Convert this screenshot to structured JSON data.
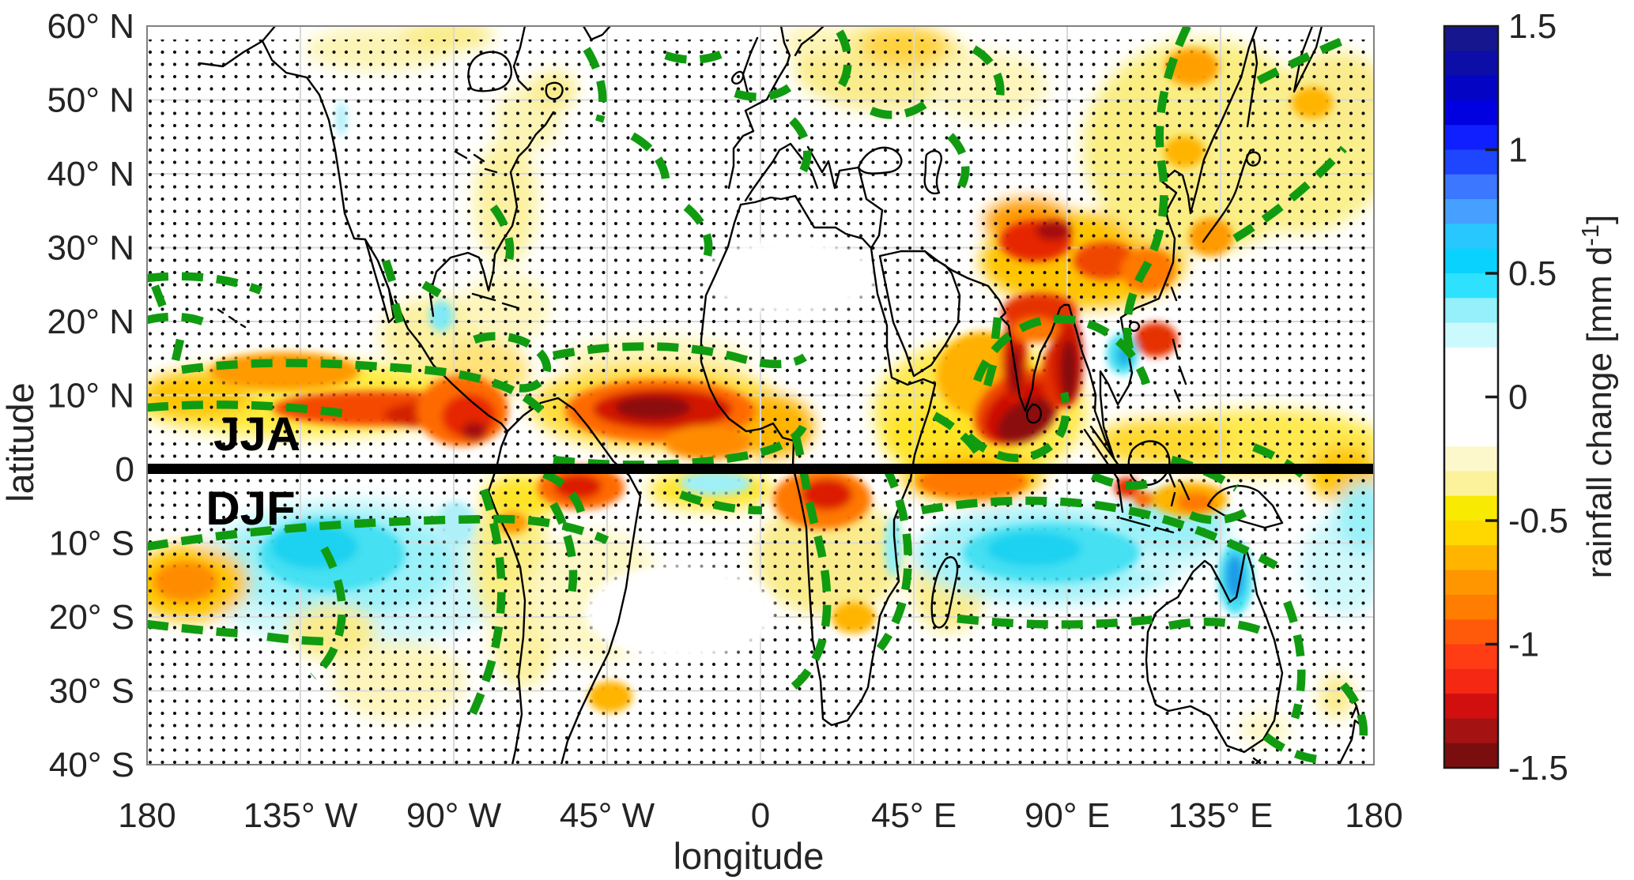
{
  "figure": {
    "kind": "seasonal rainfall-change world map (filled contours with stippling and dashed contour overlay)",
    "background_color": "#ffffff",
    "north_of_equator_season": "JJA",
    "south_of_equator_season": "DJF"
  },
  "axes": {
    "x": {
      "label": "longitude",
      "ticks": [
        "180",
        "135° W",
        "90° W",
        "45° W",
        "0",
        "45° E",
        "90° E",
        "135° E",
        "180"
      ]
    },
    "y": {
      "label": "latitude",
      "ticks": [
        "60° N",
        "50° N",
        "40° N",
        "30° N",
        "20° N",
        "10° N",
        "0",
        "10° S",
        "20° S",
        "30° S",
        "40° S"
      ]
    }
  },
  "annotations": {
    "north_label": "JJA",
    "south_label": "DJF"
  },
  "colorbar": {
    "label_prefix": "rainfall change [mm d",
    "label_sup": "-1",
    "label_suffix": "]",
    "ticks": [
      "1.5",
      "1",
      "0.5",
      "0",
      "-0.5",
      "-1",
      "-1.5"
    ],
    "tick_values": [
      1.5,
      1,
      0.5,
      0,
      -0.5,
      -1,
      -1.5
    ],
    "value_range": [
      -1.5,
      1.5
    ],
    "bands_top_to_bottom": [
      "#16168f",
      "#0d0da8",
      "#0404c4",
      "#0000e0",
      "#0f1fff",
      "#1e46ff",
      "#3c78ff",
      "#46a0ff",
      "#28c8ff",
      "#0ad2ff",
      "#2ee2ff",
      "#96f0fb",
      "#ccfafc",
      "#ffffff",
      "#ffffff",
      "#ffffff",
      "#ffffff",
      "#fdf8cc",
      "#fcf29b",
      "#f8ea00",
      "#ffd800",
      "#ffb400",
      "#ff9600",
      "#ff7d00",
      "#ff5a0a",
      "#ff3c14",
      "#f52814",
      "#d20f0f",
      "#a51212",
      "#7a0e0e"
    ]
  },
  "map_overlays": {
    "equator_divider_color": "#000000",
    "contour_dash_color": "#119b11",
    "gridline_color": "#d9d9d9",
    "coastline_color": "#000000",
    "stipple_color": "#111111"
  },
  "chart_data": {
    "type": "heatmap",
    "title": "",
    "xlabel": "longitude",
    "ylabel": "latitude",
    "x_range_deg": [
      -180,
      180
    ],
    "y_range_deg": [
      -40,
      60
    ],
    "x_tick_step_deg": 45,
    "y_tick_step_deg": 10,
    "value_label": "rainfall change [mm d-1]",
    "value_range": [
      -1.5,
      1.5
    ],
    "colorbar_band_step": 0.1,
    "layout": {
      "season_divider": "thick black line at equator, JJA shown north, DJF shown south",
      "stippling": "black dots over large parts of the map",
      "dashed_overlay": "thick green dashed contours outlining tropical rain belts"
    },
    "approx_regions": [
      {
        "season": "JJA",
        "region": "west-central Pacific ITCZ band 5-12N",
        "change_mm_d": -0.6
      },
      {
        "season": "JJA",
        "region": "east Pacific / Central America ITCZ",
        "change_mm_d": -1.2
      },
      {
        "season": "JJA",
        "region": "equatorial Atlantic off West Africa",
        "change_mm_d": -1.5
      },
      {
        "season": "JJA",
        "region": "Arabian Sea hook around southern India",
        "change_mm_d": -1.5
      },
      {
        "season": "JJA",
        "region": "Bangladesh-Myanmar coast and 20-30N China band",
        "change_mm_d": -1.0
      },
      {
        "season": "JJA",
        "region": "NW Pacific, Japan and mid-latitude oceans",
        "change_mm_d": -0.3
      },
      {
        "season": "JJA",
        "region": "Gulf of Thailand spot",
        "change_mm_d": 0.4
      },
      {
        "season": "DJF",
        "region": "central South Pacific 10-20S",
        "change_mm_d": 0.5
      },
      {
        "season": "DJF",
        "region": "southern tropical Indian Ocean 10-15S",
        "change_mm_d": 0.5
      },
      {
        "season": "DJF",
        "region": "Cape York / NE Australia",
        "change_mm_d": 0.7
      },
      {
        "season": "DJF",
        "region": "NE Brazil near equator",
        "change_mm_d": -1.0
      },
      {
        "season": "DJF",
        "region": "Angola / southern Africa",
        "change_mm_d": -1.0
      },
      {
        "season": "DJF",
        "region": "far SW Pacific blob near date line 15S",
        "change_mm_d": -0.7
      }
    ]
  }
}
